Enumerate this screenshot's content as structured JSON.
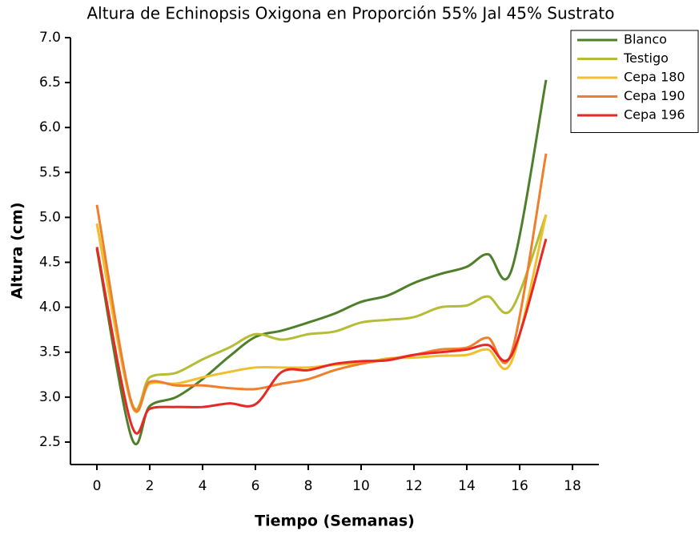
{
  "chart_data": {
    "type": "line",
    "title": "Altura de Echinopsis Oxigona en Proporción 55% Jal 45% Sustrato",
    "xlabel": "Tiempo (Semanas)",
    "ylabel": "Altura (cm)",
    "x": [
      0,
      1.3,
      2,
      3,
      4,
      5,
      6,
      7,
      8,
      9,
      10,
      11,
      12,
      13,
      14,
      14.8,
      15.7,
      17
    ],
    "series": [
      {
        "name": "Blanco",
        "color": "#4f7f2a",
        "values": [
          4.65,
          2.56,
          2.9,
          3.0,
          3.2,
          3.45,
          3.67,
          3.74,
          3.83,
          3.93,
          4.06,
          4.13,
          4.27,
          4.37,
          4.45,
          4.59,
          4.42,
          6.53
        ]
      },
      {
        "name": "Testigo",
        "color": "#b4bd35",
        "values": [
          4.93,
          2.95,
          3.22,
          3.27,
          3.42,
          3.55,
          3.7,
          3.64,
          3.7,
          3.73,
          3.83,
          3.86,
          3.89,
          4.0,
          4.02,
          4.12,
          3.98,
          5.03
        ]
      },
      {
        "name": "Cepa 180",
        "color": "#f0c02c",
        "values": [
          4.93,
          2.93,
          3.15,
          3.15,
          3.22,
          3.28,
          3.33,
          3.33,
          3.33,
          3.36,
          3.38,
          3.43,
          3.44,
          3.46,
          3.47,
          3.53,
          3.4,
          5.03
        ]
      },
      {
        "name": "Cepa 190",
        "color": "#ef7f2e",
        "values": [
          5.14,
          2.95,
          3.17,
          3.13,
          3.13,
          3.1,
          3.09,
          3.15,
          3.2,
          3.3,
          3.37,
          3.42,
          3.47,
          3.53,
          3.55,
          3.66,
          3.5,
          5.71
        ]
      },
      {
        "name": "Cepa 196",
        "color": "#e82727",
        "values": [
          4.67,
          2.7,
          2.87,
          2.89,
          2.89,
          2.93,
          2.92,
          3.28,
          3.3,
          3.37,
          3.4,
          3.41,
          3.47,
          3.5,
          3.53,
          3.58,
          3.47,
          4.76
        ]
      }
    ],
    "xlim": [
      -1,
      19
    ],
    "xticks": [
      0,
      2,
      4,
      6,
      8,
      10,
      12,
      14,
      16,
      18
    ],
    "ylim": [
      2.25,
      7.0
    ],
    "yticks": [
      2.5,
      {
        "value": 3,
        "label": "3.0"
      },
      3.5,
      {
        "value": 4,
        "label": "4.0"
      },
      4.5,
      {
        "value": 5,
        "label": "5.0"
      },
      5.5,
      {
        "value": 6,
        "label": "6.0"
      },
      6.5,
      {
        "value": 7,
        "label": "7.0"
      }
    ],
    "legend": "top-right"
  }
}
